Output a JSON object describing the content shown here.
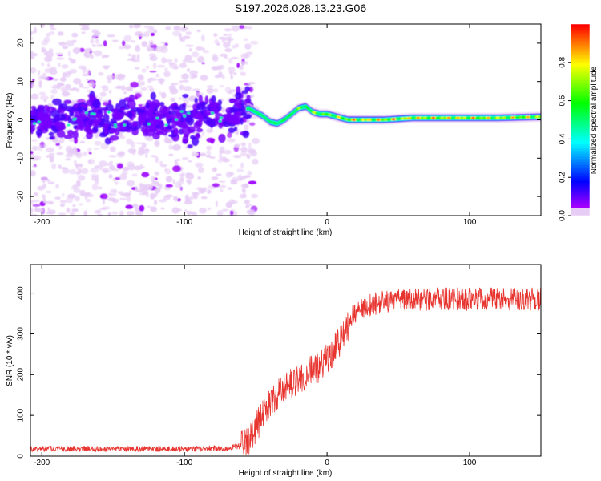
{
  "title": "S197.2026.028.13.23.G06",
  "chart_data": [
    {
      "type": "heatmap",
      "title": "S197.2026.028.13.23.G06",
      "xlabel": "Height of straight line (km)",
      "ylabel": "Frequency (Hz)",
      "xlim": [
        -208,
        150
      ],
      "ylim": [
        -25,
        25
      ],
      "xticks": [
        -200,
        -100,
        0,
        100
      ],
      "yticks": [
        -20,
        -10,
        0,
        10,
        20
      ],
      "tick_labels_x": [
        "-200",
        "-100",
        "0",
        "100"
      ],
      "tick_labels_y": [
        "-20",
        "-10",
        "0",
        "10",
        "20"
      ],
      "colorbar": {
        "label": "Normalized spectral amplitude",
        "range": [
          0,
          1
        ],
        "ticks": [
          "0.0",
          "0.2",
          "0.4",
          "0.6",
          "0.8"
        ],
        "tick_values": [
          0,
          0.2,
          0.4,
          0.6,
          0.8
        ]
      },
      "ridge": {
        "x": [
          -208,
          -190,
          -170,
          -150,
          -130,
          -110,
          -90,
          -70,
          -60,
          -55,
          -50,
          -45,
          -40,
          -35,
          -30,
          -25,
          -20,
          -15,
          -10,
          -5,
          0,
          5,
          10,
          15,
          20,
          40,
          60,
          80,
          100,
          120,
          150
        ],
        "freq": [
          0.5,
          0,
          1,
          0,
          1,
          0,
          0.5,
          1,
          2.5,
          3,
          2,
          1,
          -0.5,
          -1,
          0,
          1.5,
          3,
          3.5,
          2,
          1.5,
          1.5,
          1,
          0.5,
          0,
          0,
          0,
          0.5,
          0.5,
          0.5,
          0.5,
          0.8
        ],
        "amplitude": [
          0.15,
          0.15,
          0.15,
          0.15,
          0.15,
          0.15,
          0.15,
          0.2,
          0.45,
          0.5,
          0.5,
          0.55,
          0.55,
          0.6,
          0.65,
          0.7,
          0.75,
          0.75,
          0.8,
          0.8,
          0.8,
          0.85,
          0.85,
          0.95,
          0.95,
          0.95,
          0.95,
          0.95,
          0.95,
          0.9,
          0.9
        ]
      },
      "noise_region": [
        -208,
        -55
      ]
    },
    {
      "type": "line",
      "xlabel": "Height of straight line (km)",
      "ylabel": "SNR (10 * v/v)",
      "xlim": [
        -208,
        150
      ],
      "ylim": [
        0,
        470
      ],
      "xticks": [
        -200,
        -100,
        0,
        100
      ],
      "yticks": [
        0,
        100,
        200,
        300,
        400
      ],
      "tick_labels_x": [
        "-200",
        "-100",
        "0",
        "100"
      ],
      "tick_labels_y": [
        "0",
        "100",
        "200",
        "300",
        "400"
      ],
      "series": [
        {
          "name": "SNR",
          "color": "#e8342f",
          "x": [
            -208,
            -180,
            -150,
            -120,
            -90,
            -70,
            -60,
            -55,
            -50,
            -45,
            -40,
            -35,
            -30,
            -25,
            -20,
            -15,
            -10,
            -5,
            0,
            5,
            10,
            15,
            20,
            25,
            30,
            40,
            50,
            60,
            80,
            100,
            120,
            150
          ],
          "y": [
            18,
            18,
            18,
            18,
            18,
            20,
            25,
            35,
            70,
            100,
            130,
            150,
            165,
            180,
            190,
            200,
            210,
            220,
            240,
            260,
            290,
            320,
            345,
            360,
            370,
            380,
            385,
            385,
            385,
            385,
            385,
            385
          ]
        }
      ]
    }
  ]
}
